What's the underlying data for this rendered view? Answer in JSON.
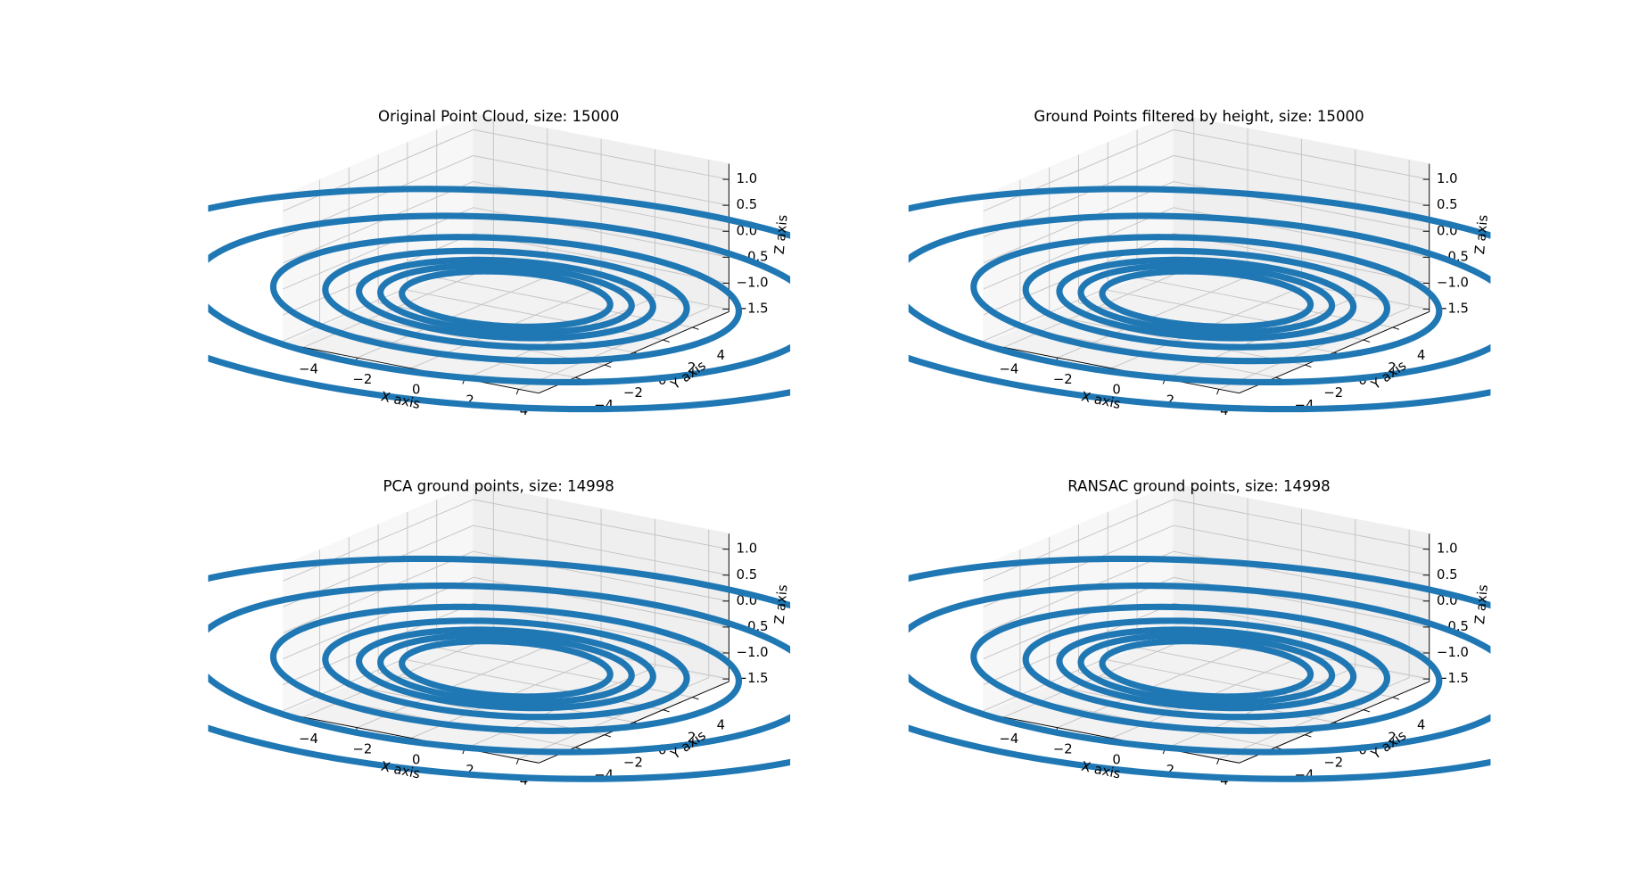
{
  "chart_data": [
    {
      "type": "scatter3d",
      "title": "Original Point Cloud, size: 15000",
      "xlabel": "X axis",
      "ylabel": "Y axis",
      "zlabel": "Z axis",
      "xlim": [
        -4.75,
        4.75
      ],
      "ylim": [
        -6.5,
        6.5
      ],
      "zlim": [
        -1.55,
        1.3
      ],
      "xticks": [
        {
          "value": -4,
          "label": "−4"
        },
        {
          "value": -2,
          "label": "−2"
        },
        0,
        2,
        4
      ],
      "yticks": [
        {
          "value": -4,
          "label": "−4"
        },
        {
          "value": -2,
          "label": "−2"
        },
        0,
        2,
        4
      ],
      "zticks": [
        {
          "value": -1.5,
          "label": "−1.5"
        },
        {
          "value": -1.0,
          "label": "−1.0"
        },
        {
          "value": -0.5,
          "label": "−0.5"
        },
        {
          "value": 0,
          "label": "0.0"
        },
        0.5,
        {
          "value": 1,
          "label": "1.0"
        }
      ],
      "color": "#1f77b4",
      "radii": [
        3.4,
        4.1,
        4.8,
        5.9,
        7.6,
        10.2,
        13.5
      ],
      "z": [
        -1,
        -1,
        -1,
        -1,
        -1,
        -1,
        -1
      ]
    },
    {
      "type": "scatter3d",
      "title": "Ground Points filtered by height, size: 15000",
      "xlabel": "X axis",
      "ylabel": "Y axis",
      "zlabel": "Z axis",
      "xlim": [
        -4.75,
        4.75
      ],
      "ylim": [
        -6.5,
        6.5
      ],
      "zlim": [
        -1.55,
        1.3
      ],
      "xticks": [
        {
          "value": -4,
          "label": "−4"
        },
        {
          "value": -2,
          "label": "−2"
        },
        0,
        2,
        4
      ],
      "yticks": [
        {
          "value": -4,
          "label": "−4"
        },
        {
          "value": -2,
          "label": "−2"
        },
        0,
        2,
        4
      ],
      "zticks": [
        {
          "value": -1.5,
          "label": "−1.5"
        },
        {
          "value": -1.0,
          "label": "−1.0"
        },
        {
          "value": -0.5,
          "label": "−0.5"
        },
        {
          "value": 0,
          "label": "0.0"
        },
        0.5,
        {
          "value": 1,
          "label": "1.0"
        }
      ],
      "color": "#1f77b4",
      "radii": [
        3.4,
        4.1,
        4.8,
        5.9,
        7.6,
        10.2,
        13.5
      ],
      "z": [
        -1,
        -1,
        -1,
        -1,
        -1,
        -1,
        -1
      ]
    },
    {
      "type": "scatter3d",
      "title": "PCA ground points, size: 14998",
      "xlabel": "X axis",
      "ylabel": "Y axis",
      "zlabel": "Z axis",
      "xlim": [
        -4.75,
        4.75
      ],
      "ylim": [
        -6.5,
        6.5
      ],
      "zlim": [
        -1.55,
        1.3
      ],
      "xticks": [
        {
          "value": -4,
          "label": "−4"
        },
        {
          "value": -2,
          "label": "−2"
        },
        0,
        2,
        4
      ],
      "yticks": [
        {
          "value": -4,
          "label": "−4"
        },
        {
          "value": -2,
          "label": "−2"
        },
        0,
        2,
        4
      ],
      "zticks": [
        {
          "value": -1.5,
          "label": "−1.5"
        },
        {
          "value": -1.0,
          "label": "−1.0"
        },
        {
          "value": -0.5,
          "label": "−0.5"
        },
        {
          "value": 0,
          "label": "0.0"
        },
        0.5,
        {
          "value": 1,
          "label": "1.0"
        }
      ],
      "color": "#1f77b4",
      "radii": [
        3.4,
        4.1,
        4.8,
        5.9,
        7.6,
        10.2,
        13.5
      ],
      "z": [
        -1,
        -1,
        -1,
        -1,
        -1,
        -1,
        -1
      ]
    },
    {
      "type": "scatter3d",
      "title": "RANSAC ground points, size: 14998",
      "xlabel": "X axis",
      "ylabel": "Y axis",
      "zlabel": "Z axis",
      "xlim": [
        -4.75,
        4.75
      ],
      "ylim": [
        -6.5,
        6.5
      ],
      "zlim": [
        -1.55,
        1.3
      ],
      "xticks": [
        {
          "value": -4,
          "label": "−4"
        },
        {
          "value": -2,
          "label": "−2"
        },
        0,
        2,
        4
      ],
      "yticks": [
        {
          "value": -4,
          "label": "−4"
        },
        {
          "value": -2,
          "label": "−2"
        },
        0,
        2,
        4
      ],
      "zticks": [
        {
          "value": -1.5,
          "label": "−1.5"
        },
        {
          "value": -1.0,
          "label": "−1.0"
        },
        {
          "value": -0.5,
          "label": "−0.5"
        },
        {
          "value": 0,
          "label": "0.0"
        },
        0.5,
        {
          "value": 1,
          "label": "1.0"
        }
      ],
      "color": "#1f77b4",
      "radii": [
        3.4,
        4.1,
        4.8,
        5.9,
        7.6,
        10.2,
        13.5
      ],
      "z": [
        -1,
        -1,
        -1,
        -1,
        -1,
        -1,
        -1
      ]
    }
  ]
}
